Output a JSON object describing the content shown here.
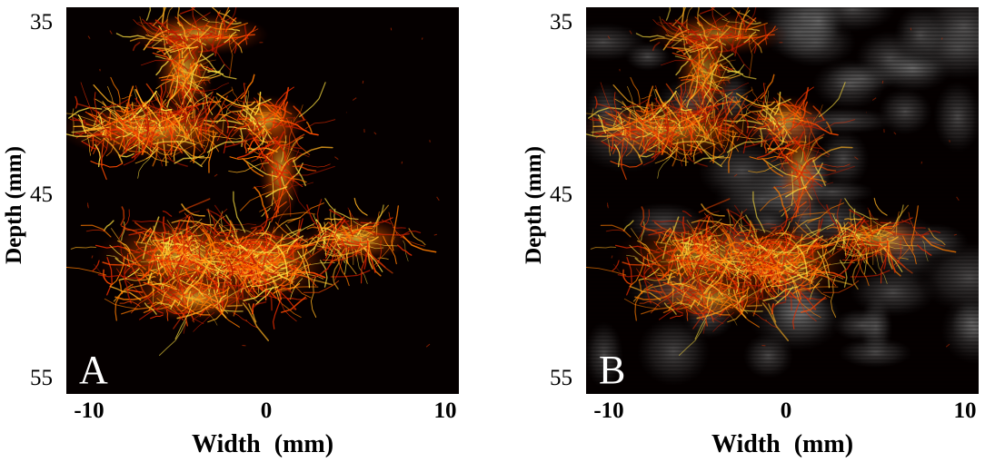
{
  "colors": {
    "vessel_hot": "#ffe040",
    "vessel_mid": "#ff6a00",
    "vessel_dark": "#c81e00",
    "background": "#050000",
    "tissue_gray": "#6a6a6a"
  },
  "panels": [
    {
      "letter": "A",
      "y_axis": {
        "label": "Depth (mm)",
        "ticks": [
          "35",
          "45",
          "55"
        ]
      },
      "x_axis": {
        "label": "Width  (mm)",
        "ticks": [
          "-10",
          "0",
          "10"
        ]
      },
      "overlay": "none"
    },
    {
      "letter": "B",
      "y_axis": {
        "label": "Depth (mm)",
        "ticks": [
          "35",
          "45",
          "55"
        ]
      },
      "x_axis": {
        "label": "Width  (mm)",
        "ticks": [
          "-10",
          "0",
          "10"
        ]
      },
      "overlay": "b-mode-gray"
    }
  ]
}
